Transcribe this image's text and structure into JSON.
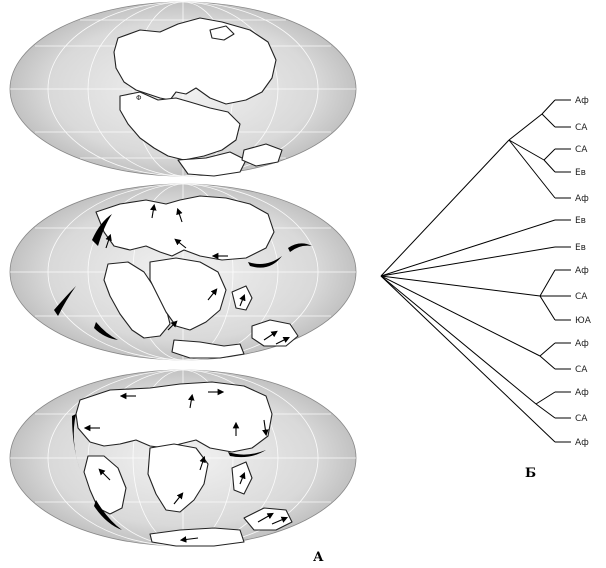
{
  "panel_a": {
    "label": "А",
    "maps": [
      {
        "id": "map-top",
        "small_label": "Φ"
      },
      {
        "id": "map-middle"
      },
      {
        "id": "map-bottom"
      }
    ]
  },
  "panel_b": {
    "label": "Б",
    "tree_tips": [
      "Аф",
      "СА",
      "СА",
      "Ев",
      "Аф",
      "Ев",
      "Ев",
      "Аф",
      "СА",
      "ЮА",
      "Аф",
      "СА",
      "Аф",
      "СА",
      "Аф"
    ]
  },
  "colors": {
    "ocean": "#e2e2e2",
    "land": "#ffffff",
    "coast": "#222222",
    "line": "#000000"
  }
}
